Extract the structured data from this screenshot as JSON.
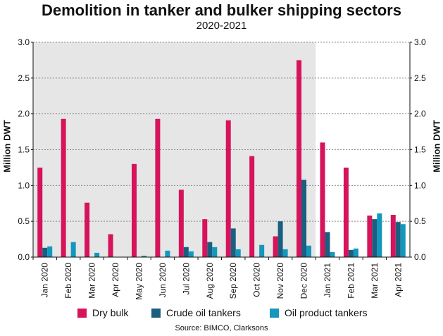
{
  "chart_data": {
    "type": "bar",
    "title": "Demolition in tanker and bulker shipping sectors",
    "subtitle": "2020-2021",
    "ylabel": "Million DWT",
    "ylabel_right": "Million DWT",
    "ylim": [
      0,
      3.0
    ],
    "yticks": [
      "0.0",
      "0.5",
      "1.0",
      "1.5",
      "2.0",
      "2.5",
      "3.0"
    ],
    "shaded_region": "Jan 2020 – Dec 2020",
    "grid": "dashed horizontal",
    "legend_position": "bottom",
    "categories": [
      "Jan 2020",
      "Feb 2020",
      "Mar 2020",
      "Apr 2020",
      "May 2020",
      "Jun 2020",
      "Jul 2020",
      "Aug 2020",
      "Sep 2020",
      "Oct 2020",
      "Nov 2020",
      "Dec 2020",
      "Jan 2021",
      "Feb 2021",
      "Mar 2021",
      "Apr 2021"
    ],
    "series": [
      {
        "name": "Dry bulk",
        "color": "#d6135b",
        "values": [
          1.25,
          1.93,
          0.76,
          0.32,
          1.3,
          1.93,
          0.94,
          0.53,
          1.91,
          1.41,
          0.29,
          2.75,
          1.6,
          1.25,
          0.58,
          0.59
        ]
      },
      {
        "name": "Crude oil tankers",
        "color": "#1a5e80",
        "values": [
          0.13,
          0.0,
          0.0,
          0.0,
          0.0,
          0.0,
          0.14,
          0.21,
          0.4,
          0.0,
          0.5,
          1.08,
          0.35,
          0.1,
          0.53,
          0.49
        ]
      },
      {
        "name": "Oil product tankers",
        "color": "#1497bd",
        "values": [
          0.15,
          0.21,
          0.06,
          0.0,
          0.02,
          0.09,
          0.08,
          0.14,
          0.11,
          0.17,
          0.11,
          0.16,
          0.07,
          0.12,
          0.61,
          0.46
        ]
      }
    ],
    "source": "Source: BIMCO, Clarksons"
  }
}
